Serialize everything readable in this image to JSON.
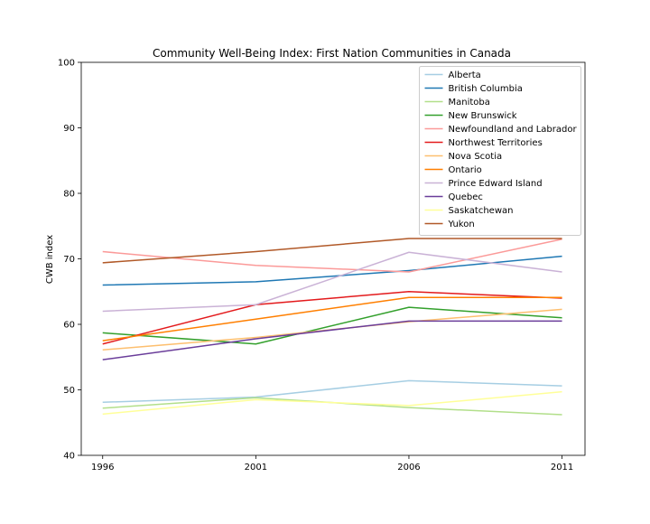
{
  "chart_data": {
    "type": "line",
    "title": "Community Well-Being Index: First Nation Communities in Canada",
    "xlabel": "",
    "ylabel": "CWB index",
    "categories": [
      "1996",
      "2001",
      "2006",
      "2011"
    ],
    "x": [
      1996,
      2001,
      2006,
      2011
    ],
    "xlim": [
      1995.3,
      2011.75
    ],
    "ylim": [
      40,
      100
    ],
    "yticks": [
      40,
      50,
      60,
      70,
      80,
      90,
      100
    ],
    "grid": false,
    "legend_position": "top-right",
    "series": [
      {
        "name": "Alberta",
        "color": "#a6cee3",
        "values": [
          48.1,
          48.9,
          51.4,
          50.6
        ]
      },
      {
        "name": "British Columbia",
        "color": "#1f78b4",
        "values": [
          66.0,
          66.5,
          68.2,
          70.4
        ]
      },
      {
        "name": "Manitoba",
        "color": "#b2df8a",
        "values": [
          47.2,
          48.8,
          47.3,
          46.2
        ]
      },
      {
        "name": "New Brunswick",
        "color": "#33a02c",
        "values": [
          58.7,
          57.0,
          62.6,
          61.0
        ]
      },
      {
        "name": "Newfoundland and Labrador",
        "color": "#fb9a99",
        "values": [
          71.1,
          69.0,
          68.0,
          73.0
        ]
      },
      {
        "name": "Northwest Territories",
        "color": "#e31a1c",
        "values": [
          57.0,
          63.0,
          65.0,
          64.0
        ]
      },
      {
        "name": "Nova Scotia",
        "color": "#fdbf6f",
        "values": [
          56.1,
          58.0,
          60.4,
          62.3
        ]
      },
      {
        "name": "Ontario",
        "color": "#ff7f00",
        "values": [
          57.5,
          60.8,
          64.1,
          64.1
        ]
      },
      {
        "name": "Prince Edward Island",
        "color": "#cab2d6",
        "values": [
          62.0,
          63.0,
          71.0,
          68.0
        ]
      },
      {
        "name": "Quebec",
        "color": "#6a3d9a",
        "values": [
          54.6,
          57.8,
          60.5,
          60.5
        ]
      },
      {
        "name": "Saskatchewan",
        "color": "#ffff99",
        "values": [
          46.3,
          48.5,
          47.6,
          49.7
        ]
      },
      {
        "name": "Yukon",
        "color": "#b15928",
        "values": [
          69.4,
          71.1,
          73.1,
          73.1
        ]
      }
    ]
  }
}
